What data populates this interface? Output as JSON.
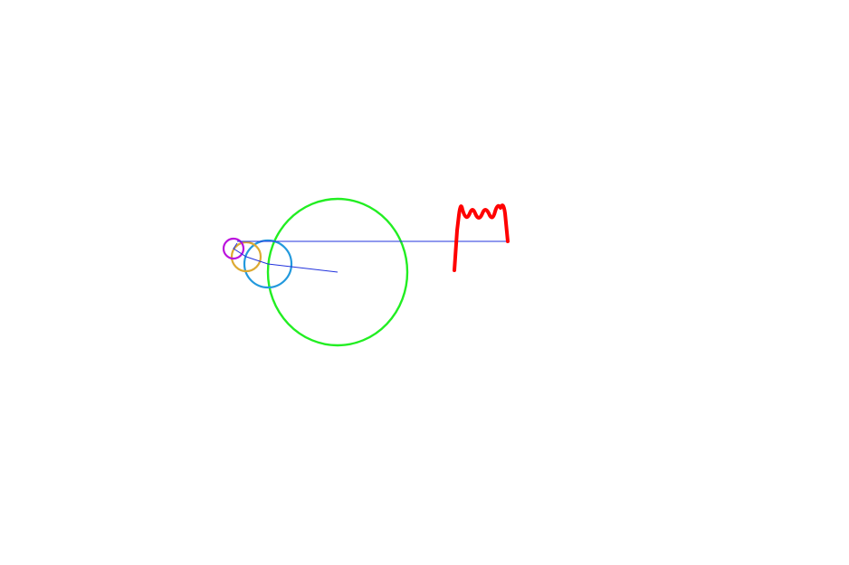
{
  "colors": {
    "background": "#ffffff",
    "epicycle_1": "#22ee22",
    "epicycle_2": "#2299dd",
    "epicycle_3": "#ddaa33",
    "epicycle_4": "#bb11dd",
    "radius_arm": "#2233dd",
    "connector": "#2233dd",
    "wave": "#ff0000"
  }
}
